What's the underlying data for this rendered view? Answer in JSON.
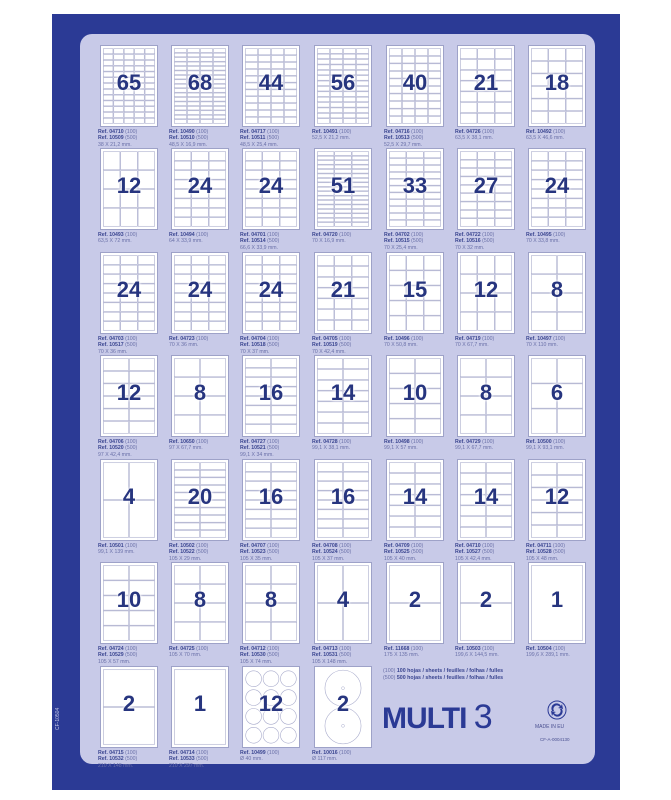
{
  "colors": {
    "frame": "#2b3a95",
    "panel": "#c8cae8",
    "number": "#27357f"
  },
  "rows": [
    [
      {
        "count": "65",
        "cols": 5,
        "rows": 13,
        "refs": [
          [
            "Ref. 04710",
            "(100)"
          ],
          [
            "Ref. 10509",
            "(500)"
          ]
        ],
        "size": "38 X 21,2 mm."
      },
      {
        "count": "68",
        "cols": 4,
        "rows": 17,
        "refs": [
          [
            "Ref. 10490",
            "(100)"
          ],
          [
            "Ref. 10510",
            "(500)"
          ]
        ],
        "size": "48,5 X 16,9 mm."
      },
      {
        "count": "44",
        "cols": 4,
        "rows": 11,
        "refs": [
          [
            "Ref. 04717",
            "(100)"
          ],
          [
            "Ref. 10511",
            "(500)"
          ]
        ],
        "size": "48,5 X 25,4 mm."
      },
      {
        "count": "56",
        "cols": 4,
        "rows": 14,
        "refs": [
          [
            "Ref. 10491",
            "(100)"
          ]
        ],
        "size": "52,5 X 21,2 mm."
      },
      {
        "count": "40",
        "cols": 4,
        "rows": 10,
        "refs": [
          [
            "Ref. 04716",
            "(100)"
          ],
          [
            "Ref. 10513",
            "(500)"
          ]
        ],
        "size": "52,5 X 29,7 mm."
      },
      {
        "count": "21",
        "cols": 3,
        "rows": 7,
        "refs": [
          [
            "Ref. 04726",
            "(100)"
          ]
        ],
        "size": "63,5 X 38,1 mm."
      },
      {
        "count": "18",
        "cols": 3,
        "rows": 6,
        "refs": [
          [
            "Ref. 10492",
            "(100)"
          ]
        ],
        "size": "63,5 X 46,6 mm."
      }
    ],
    [
      {
        "count": "12",
        "cols": 3,
        "rows": 4,
        "refs": [
          [
            "Ref. 10493",
            "(100)"
          ]
        ],
        "size": "63,5 X 72 mm."
      },
      {
        "count": "24",
        "cols": 3,
        "rows": 8,
        "refs": [
          [
            "Ref. 10494",
            "(100)"
          ]
        ],
        "size": "64 X 33,9 mm."
      },
      {
        "count": "24",
        "cols": 3,
        "rows": 8,
        "refs": [
          [
            "Ref. 04701",
            "(100)"
          ],
          [
            "Ref. 10514",
            "(500)"
          ]
        ],
        "size": "66,6 X 33,9 mm."
      },
      {
        "count": "51",
        "cols": 3,
        "rows": 17,
        "refs": [
          [
            "Ref. 04720",
            "(100)"
          ]
        ],
        "size": "70 X 16,9 mm."
      },
      {
        "count": "33",
        "cols": 3,
        "rows": 11,
        "refs": [
          [
            "Ref. 04702",
            "(100)"
          ],
          [
            "Ref. 10515",
            "(500)"
          ]
        ],
        "size": "70 X 25,4 mm."
      },
      {
        "count": "27",
        "cols": 3,
        "rows": 9,
        "refs": [
          [
            "Ref. 04722",
            "(100)"
          ],
          [
            "Ref. 10516",
            "(500)"
          ]
        ],
        "size": "70 X 32 mm."
      },
      {
        "count": "24",
        "cols": 3,
        "rows": 8,
        "refs": [
          [
            "Ref. 10495",
            "(100)"
          ]
        ],
        "size": "70 X 33,8 mm."
      }
    ],
    [
      {
        "count": "24",
        "cols": 3,
        "rows": 8,
        "refs": [
          [
            "Ref. 04703",
            "(100)"
          ],
          [
            "Ref. 10517",
            "(500)"
          ]
        ],
        "size": "70 X 36 mm."
      },
      {
        "count": "24",
        "cols": 3,
        "rows": 8,
        "refs": [
          [
            "Ref. 04723",
            "(100)"
          ]
        ],
        "size": "70 X 36 mm."
      },
      {
        "count": "24",
        "cols": 3,
        "rows": 8,
        "refs": [
          [
            "Ref. 04704",
            "(100)"
          ],
          [
            "Ref. 10518",
            "(500)"
          ]
        ],
        "size": "70 X 37 mm."
      },
      {
        "count": "21",
        "cols": 3,
        "rows": 7,
        "refs": [
          [
            "Ref. 04705",
            "(100)"
          ],
          [
            "Ref. 10519",
            "(500)"
          ]
        ],
        "size": "70 X 42,4 mm."
      },
      {
        "count": "15",
        "cols": 3,
        "rows": 5,
        "refs": [
          [
            "Ref. 10496",
            "(100)"
          ]
        ],
        "size": "70 X 50,8 mm."
      },
      {
        "count": "12",
        "cols": 3,
        "rows": 4,
        "refs": [
          [
            "Ref. 04719",
            "(100)"
          ]
        ],
        "size": "70 X 67,7 mm."
      },
      {
        "count": "8",
        "cols": 2,
        "rows": 4,
        "refs": [
          [
            "Ref. 10497",
            "(100)"
          ]
        ],
        "size": "70 X 110 mm."
      }
    ],
    [
      {
        "count": "12",
        "cols": 2,
        "rows": 6,
        "refs": [
          [
            "Ref. 04706",
            "(100)"
          ],
          [
            "Ref. 10520",
            "(500)"
          ]
        ],
        "size": "97 X 42,4 mm."
      },
      {
        "count": "8",
        "cols": 2,
        "rows": 4,
        "refs": [
          [
            "Ref. 10650",
            "(100)"
          ]
        ],
        "size": "97 X 67,7 mm."
      },
      {
        "count": "16",
        "cols": 2,
        "rows": 8,
        "refs": [
          [
            "Ref. 04727",
            "(100)"
          ],
          [
            "Ref. 10521",
            "(500)"
          ]
        ],
        "size": "99,1 X 34 mm."
      },
      {
        "count": "14",
        "cols": 2,
        "rows": 7,
        "refs": [
          [
            "Ref. 04728",
            "(100)"
          ]
        ],
        "size": "99,1 X 38,1 mm."
      },
      {
        "count": "10",
        "cols": 2,
        "rows": 5,
        "refs": [
          [
            "Ref. 10498",
            "(100)"
          ]
        ],
        "size": "99,1 X 57 mm."
      },
      {
        "count": "8",
        "cols": 2,
        "rows": 4,
        "refs": [
          [
            "Ref. 04729",
            "(100)"
          ]
        ],
        "size": "99,1 X 67,7 mm."
      },
      {
        "count": "6",
        "cols": 2,
        "rows": 3,
        "refs": [
          [
            "Ref. 10500",
            "(100)"
          ]
        ],
        "size": "99,1 X 93,1 mm."
      }
    ],
    [
      {
        "count": "4",
        "cols": 2,
        "rows": 2,
        "refs": [
          [
            "Ref. 10501",
            "(100)"
          ]
        ],
        "size": "99,1 X 139 mm."
      },
      {
        "count": "20",
        "cols": 2,
        "rows": 10,
        "refs": [
          [
            "Ref. 10502",
            "(100)"
          ],
          [
            "Ref. 10522",
            "(500)"
          ]
        ],
        "size": "105 X 29 mm."
      },
      {
        "count": "16",
        "cols": 2,
        "rows": 8,
        "refs": [
          [
            "Ref. 04707",
            "(100)"
          ],
          [
            "Ref. 10523",
            "(500)"
          ]
        ],
        "size": "105 X 35 mm."
      },
      {
        "count": "16",
        "cols": 2,
        "rows": 8,
        "refs": [
          [
            "Ref. 04708",
            "(100)"
          ],
          [
            "Ref. 10524",
            "(500)"
          ]
        ],
        "size": "105 X 37 mm."
      },
      {
        "count": "14",
        "cols": 2,
        "rows": 7,
        "refs": [
          [
            "Ref. 04709",
            "(100)"
          ],
          [
            "Ref. 10525",
            "(500)"
          ]
        ],
        "size": "105 X 40 mm."
      },
      {
        "count": "14",
        "cols": 2,
        "rows": 7,
        "refs": [
          [
            "Ref. 04710",
            "(100)"
          ],
          [
            "Ref. 10527",
            "(500)"
          ]
        ],
        "size": "105 X 42,4 mm."
      },
      {
        "count": "12",
        "cols": 2,
        "rows": 6,
        "refs": [
          [
            "Ref. 04711",
            "(100)"
          ],
          [
            "Ref. 10528",
            "(500)"
          ]
        ],
        "size": "105 X 48 mm."
      }
    ],
    [
      {
        "count": "10",
        "cols": 2,
        "rows": 5,
        "refs": [
          [
            "Ref. 04724",
            "(100)"
          ],
          [
            "Ref. 10529",
            "(500)"
          ]
        ],
        "size": "105 X 57 mm."
      },
      {
        "count": "8",
        "cols": 2,
        "rows": 4,
        "refs": [
          [
            "Ref. 04725",
            "(100)"
          ]
        ],
        "size": "105 X 70 mm."
      },
      {
        "count": "8",
        "cols": 2,
        "rows": 4,
        "refs": [
          [
            "Ref. 04712",
            "(100)"
          ],
          [
            "Ref. 10530",
            "(500)"
          ]
        ],
        "size": "105 X 74 mm."
      },
      {
        "count": "4",
        "cols": 2,
        "rows": 2,
        "refs": [
          [
            "Ref. 04713",
            "(100)"
          ],
          [
            "Ref. 10531",
            "(500)"
          ]
        ],
        "size": "105 X 148 mm."
      },
      {
        "count": "2",
        "cols": 1,
        "rows": 2,
        "refs": [
          [
            "Ref. 11668",
            "(100)"
          ]
        ],
        "size": "175 X 135 mm."
      },
      {
        "count": "2",
        "cols": 1,
        "rows": 2,
        "refs": [
          [
            "Ref. 10503",
            "(100)"
          ]
        ],
        "size": "199,6 X 144,5 mm."
      },
      {
        "count": "1",
        "cols": 1,
        "rows": 1,
        "refs": [
          [
            "Ref. 10504",
            "(100)"
          ]
        ],
        "size": "199,6 X 289,1 mm."
      }
    ],
    [
      {
        "count": "2",
        "cols": 1,
        "rows": 2,
        "refs": [
          [
            "Ref. 04715",
            "(100)"
          ],
          [
            "Ref. 10532",
            "(500)"
          ]
        ],
        "size": "210 X 148 mm."
      },
      {
        "count": "1",
        "cols": 1,
        "rows": 1,
        "refs": [
          [
            "Ref. 04714",
            "(100)"
          ],
          [
            "Ref. 10533",
            "(500)"
          ]
        ],
        "size": "210 X 297 mm."
      },
      {
        "count": "12",
        "cols": 3,
        "rows": 4,
        "shape": "round",
        "refs": [
          [
            "Ref. 10499",
            "(100)"
          ]
        ],
        "size": "Ø 40 mm."
      },
      {
        "count": "2",
        "cols": 1,
        "rows": 2,
        "shape": "cd",
        "refs": [
          [
            "Ref. 10016",
            "(100)"
          ]
        ],
        "size": "Ø 117 mm."
      }
    ]
  ],
  "legend": [
    {
      "code": "(100)",
      "text": "100 hojas / sheets / feuilles / folhas / fulles"
    },
    {
      "code": "(500)",
      "text": "500 hojas / sheets / feuilles / folhas / fulles"
    }
  ],
  "brand": {
    "name": "MULTI",
    "digit": "3",
    "made_in": "MADE IN EU",
    "code": "CF-A-0004130",
    "side_code": "CF-10504",
    "recycle_icon": "recycle-icon"
  }
}
